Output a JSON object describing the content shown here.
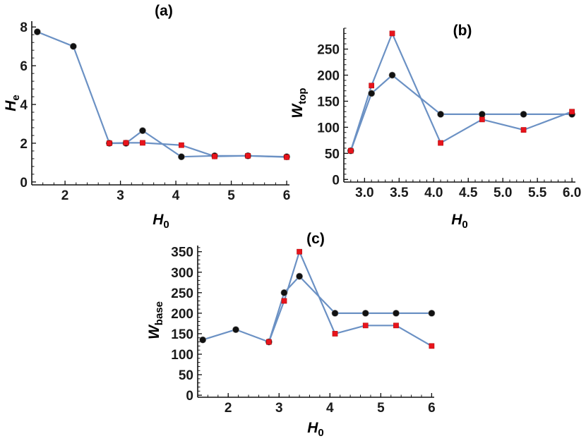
{
  "colors": {
    "line": "#6b91c4",
    "black_marker": "#111111",
    "red_marker": "#e8141c",
    "axis": "#111111"
  },
  "chart_data": [
    {
      "id": "a",
      "type": "line",
      "panel_label": "(a)",
      "xlabel": "H",
      "xlabel_sub": "0",
      "ylabel": "H",
      "ylabel_sub": "e",
      "xlim": [
        1.4,
        6.05
      ],
      "ylim": [
        -0.15,
        8.3
      ],
      "xticks": [
        2,
        3,
        4,
        5,
        6
      ],
      "yticks": [
        0,
        2,
        4,
        6,
        8
      ],
      "series": [
        {
          "name": "black",
          "marker": "circle",
          "x": [
            1.5,
            2.15,
            2.8,
            3.1,
            3.4,
            4.1,
            4.7,
            5.3,
            6.0
          ],
          "y": [
            7.75,
            7.0,
            2.0,
            2.0,
            2.65,
            1.3,
            1.35,
            1.35,
            1.3
          ]
        },
        {
          "name": "red",
          "marker": "square",
          "x": [
            2.8,
            3.1,
            3.4,
            4.1,
            4.7,
            5.3,
            6.0
          ],
          "y": [
            2.0,
            2.02,
            2.02,
            1.9,
            1.32,
            1.35,
            1.28
          ]
        }
      ]
    },
    {
      "id": "b",
      "type": "line",
      "panel_label": "(b)",
      "xlabel": "H",
      "xlabel_sub": "0",
      "ylabel": "W",
      "ylabel_sub": "top",
      "xlim": [
        2.7,
        6.05
      ],
      "ylim": [
        -5,
        290
      ],
      "xticks": [
        3.0,
        3.5,
        4.0,
        4.5,
        5.0,
        5.5,
        6.0
      ],
      "xtick_labels": [
        "3.0",
        "3.5",
        "4.0",
        "4.5",
        "5.0",
        "5.5",
        "6.0"
      ],
      "yticks": [
        0,
        50,
        100,
        150,
        200,
        250
      ],
      "series": [
        {
          "name": "black",
          "marker": "circle",
          "x": [
            2.8,
            3.1,
            3.4,
            4.1,
            4.7,
            5.3,
            6.0
          ],
          "y": [
            55,
            165,
            200,
            125,
            125,
            125,
            125
          ]
        },
        {
          "name": "red",
          "marker": "square",
          "x": [
            2.8,
            3.1,
            3.4,
            4.1,
            4.7,
            5.3,
            6.0
          ],
          "y": [
            55,
            180,
            280,
            70,
            115,
            95,
            130
          ]
        }
      ]
    },
    {
      "id": "c",
      "type": "line",
      "panel_label": "(c)",
      "xlabel": "H",
      "xlabel_sub": "0",
      "ylabel": "W",
      "ylabel_sub": "base",
      "xlim": [
        1.4,
        6.05
      ],
      "ylim": [
        -5,
        365
      ],
      "xticks": [
        2,
        3,
        4,
        5,
        6
      ],
      "yticks": [
        0,
        50,
        100,
        150,
        200,
        250,
        300,
        350
      ],
      "series": [
        {
          "name": "black",
          "marker": "circle",
          "x": [
            1.5,
            2.15,
            2.8,
            3.1,
            3.4,
            4.1,
            4.7,
            5.3,
            6.0
          ],
          "y": [
            135,
            160,
            130,
            250,
            290,
            200,
            200,
            200,
            200
          ]
        },
        {
          "name": "red",
          "marker": "square",
          "x": [
            2.8,
            3.1,
            3.4,
            4.1,
            4.7,
            5.3,
            6.0
          ],
          "y": [
            130,
            230,
            350,
            150,
            170,
            170,
            120
          ]
        }
      ]
    }
  ]
}
